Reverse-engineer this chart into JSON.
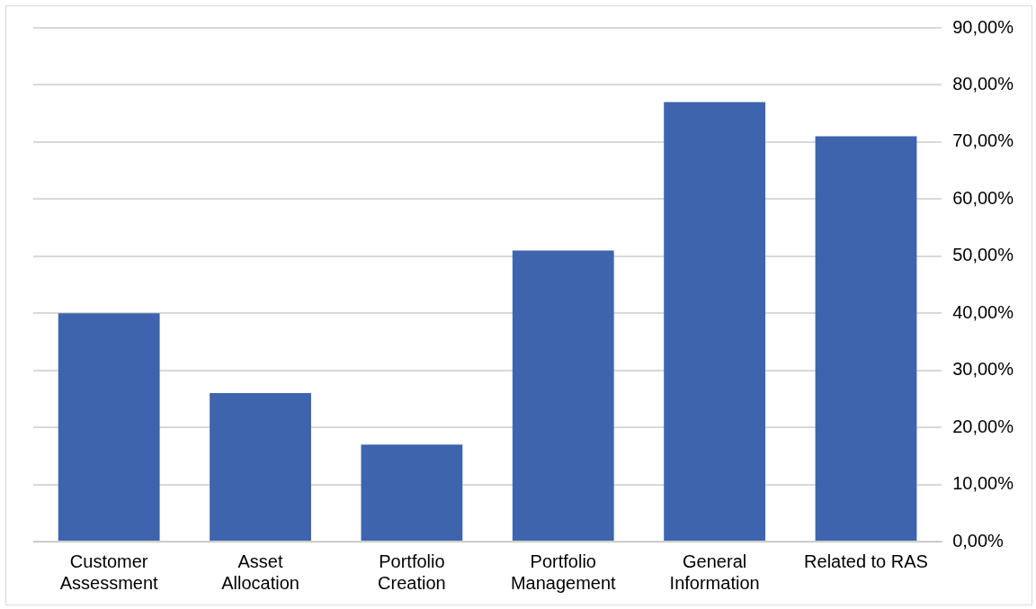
{
  "chart_data": {
    "type": "bar",
    "categories": [
      "Customer Assessment",
      "Asset Allocation",
      "Portfolio Creation",
      "Portfolio Management",
      "General Information",
      "Related to RAS"
    ],
    "values": [
      40,
      26,
      17,
      51,
      77,
      71
    ],
    "color": "#3d64ad",
    "ylim": [
      0,
      90
    ],
    "yticks": [
      {
        "value": 0,
        "label": "0,00%"
      },
      {
        "value": 10,
        "label": "10,00%"
      },
      {
        "value": 20,
        "label": "20,00%"
      },
      {
        "value": 30,
        "label": "30,00%"
      },
      {
        "value": 40,
        "label": "40,00%"
      },
      {
        "value": 50,
        "label": "50,00%"
      },
      {
        "value": 60,
        "label": "60,00%"
      },
      {
        "value": 70,
        "label": "70,00%"
      },
      {
        "value": 80,
        "label": "80,00%"
      },
      {
        "value": 90,
        "label": "90,00%"
      }
    ],
    "grid": "y",
    "legend": false
  }
}
